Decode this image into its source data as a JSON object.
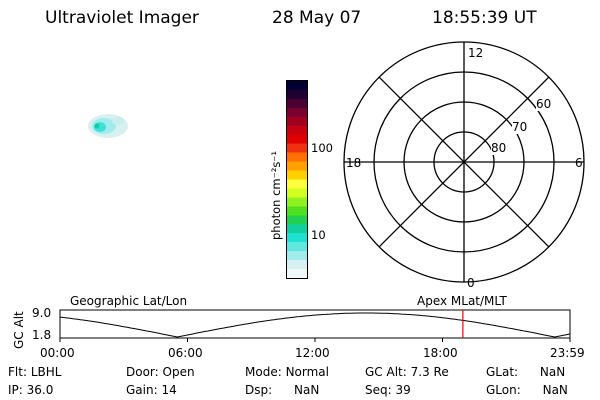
{
  "header": {
    "instrument": "Ultraviolet Imager",
    "date": "28 May 07",
    "time": "18:55:39 UT"
  },
  "colorbar": {
    "unit_label": "photon cm⁻²s⁻¹",
    "ticks": [
      "100",
      "10"
    ],
    "colors": [
      "#000033",
      "#200030",
      "#4a0033",
      "#7a0030",
      "#a00020",
      "#c80010",
      "#e00000",
      "#f03010",
      "#ff7000",
      "#ffa000",
      "#ffd000",
      "#ffff40",
      "#d0ff20",
      "#90f020",
      "#50e020",
      "#20d050",
      "#10d0a0",
      "#20e0d0",
      "#60e8e0",
      "#a0ecec",
      "#d8f0f0",
      "#f0f8f8"
    ]
  },
  "polar": {
    "clock_labels": {
      "top": "12",
      "left": "18",
      "right": "6",
      "bottom": "0"
    },
    "lat_labels": [
      "60",
      "70",
      "80"
    ]
  },
  "timeline": {
    "left_title": "Geographic Lat/Lon",
    "right_title": "Apex MLat/MLT",
    "axis_label": "GC Alt",
    "y_ticks": [
      "9.0",
      "1.8"
    ],
    "x_ticks": [
      "00:00",
      "06:00",
      "12:00",
      "18:00",
      "23:59"
    ],
    "current_time_fraction": 0.79,
    "marker_color": "#ff0000"
  },
  "info": {
    "row1": [
      {
        "key": "Flt:",
        "val": "LBHL"
      },
      {
        "key": "Door:",
        "val": "Open"
      },
      {
        "key": "Mode:",
        "val": "Normal"
      },
      {
        "key": "GC Alt:",
        "val": "7.3 Re"
      },
      {
        "key": "GLat:",
        "val": "NaN"
      }
    ],
    "row2": [
      {
        "key": "IP:",
        "val": "36.0"
      },
      {
        "key": "Gain:",
        "val": "14"
      },
      {
        "key": "Dsp:",
        "val": "NaN"
      },
      {
        "key": "Seq:",
        "val": "39"
      },
      {
        "key": "GLon:",
        "val": "NaN"
      }
    ]
  }
}
